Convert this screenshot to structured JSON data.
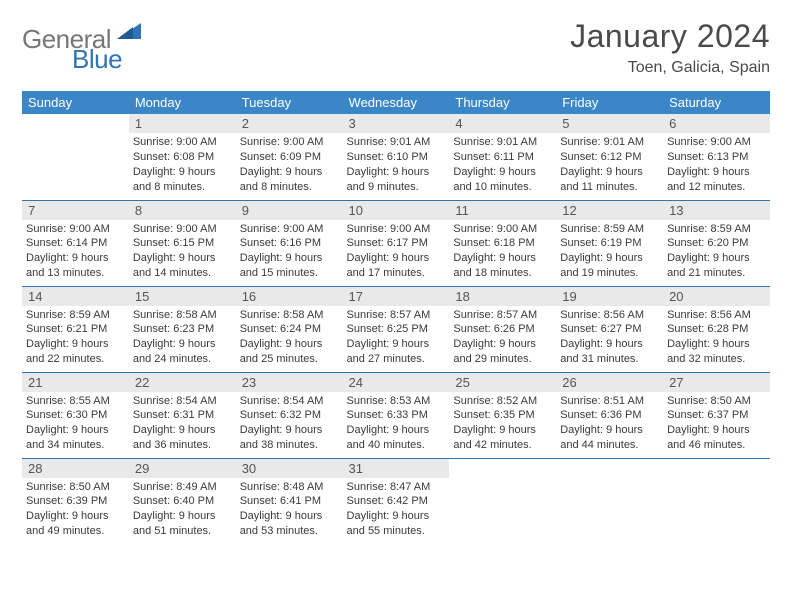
{
  "logo": {
    "general": "General",
    "blue": "Blue"
  },
  "header": {
    "title": "January 2024",
    "location": "Toen, Galicia, Spain"
  },
  "weekdays": [
    "Sunday",
    "Monday",
    "Tuesday",
    "Wednesday",
    "Thursday",
    "Friday",
    "Saturday"
  ],
  "style": {
    "header_bg": "#3b86c6",
    "header_text": "#ffffff",
    "daynum_bg": "#e9e9e9",
    "cell_border": "#2f74b5",
    "body_text": "#3a3a3a",
    "logo_gray": "#777777",
    "logo_blue": "#2f74b5",
    "background": "#ffffff",
    "title_fontsize": 32,
    "location_fontsize": 16,
    "weekday_fontsize": 13,
    "daynum_fontsize": 13,
    "body_fontsize": 11
  },
  "grid": [
    [
      null,
      {
        "n": "1",
        "sr": "9:00 AM",
        "ss": "6:08 PM",
        "dl": "9 hours and 8 minutes."
      },
      {
        "n": "2",
        "sr": "9:00 AM",
        "ss": "6:09 PM",
        "dl": "9 hours and 8 minutes."
      },
      {
        "n": "3",
        "sr": "9:01 AM",
        "ss": "6:10 PM",
        "dl": "9 hours and 9 minutes."
      },
      {
        "n": "4",
        "sr": "9:01 AM",
        "ss": "6:11 PM",
        "dl": "9 hours and 10 minutes."
      },
      {
        "n": "5",
        "sr": "9:01 AM",
        "ss": "6:12 PM",
        "dl": "9 hours and 11 minutes."
      },
      {
        "n": "6",
        "sr": "9:00 AM",
        "ss": "6:13 PM",
        "dl": "9 hours and 12 minutes."
      }
    ],
    [
      {
        "n": "7",
        "sr": "9:00 AM",
        "ss": "6:14 PM",
        "dl": "9 hours and 13 minutes."
      },
      {
        "n": "8",
        "sr": "9:00 AM",
        "ss": "6:15 PM",
        "dl": "9 hours and 14 minutes."
      },
      {
        "n": "9",
        "sr": "9:00 AM",
        "ss": "6:16 PM",
        "dl": "9 hours and 15 minutes."
      },
      {
        "n": "10",
        "sr": "9:00 AM",
        "ss": "6:17 PM",
        "dl": "9 hours and 17 minutes."
      },
      {
        "n": "11",
        "sr": "9:00 AM",
        "ss": "6:18 PM",
        "dl": "9 hours and 18 minutes."
      },
      {
        "n": "12",
        "sr": "8:59 AM",
        "ss": "6:19 PM",
        "dl": "9 hours and 19 minutes."
      },
      {
        "n": "13",
        "sr": "8:59 AM",
        "ss": "6:20 PM",
        "dl": "9 hours and 21 minutes."
      }
    ],
    [
      {
        "n": "14",
        "sr": "8:59 AM",
        "ss": "6:21 PM",
        "dl": "9 hours and 22 minutes."
      },
      {
        "n": "15",
        "sr": "8:58 AM",
        "ss": "6:23 PM",
        "dl": "9 hours and 24 minutes."
      },
      {
        "n": "16",
        "sr": "8:58 AM",
        "ss": "6:24 PM",
        "dl": "9 hours and 25 minutes."
      },
      {
        "n": "17",
        "sr": "8:57 AM",
        "ss": "6:25 PM",
        "dl": "9 hours and 27 minutes."
      },
      {
        "n": "18",
        "sr": "8:57 AM",
        "ss": "6:26 PM",
        "dl": "9 hours and 29 minutes."
      },
      {
        "n": "19",
        "sr": "8:56 AM",
        "ss": "6:27 PM",
        "dl": "9 hours and 31 minutes."
      },
      {
        "n": "20",
        "sr": "8:56 AM",
        "ss": "6:28 PM",
        "dl": "9 hours and 32 minutes."
      }
    ],
    [
      {
        "n": "21",
        "sr": "8:55 AM",
        "ss": "6:30 PM",
        "dl": "9 hours and 34 minutes."
      },
      {
        "n": "22",
        "sr": "8:54 AM",
        "ss": "6:31 PM",
        "dl": "9 hours and 36 minutes."
      },
      {
        "n": "23",
        "sr": "8:54 AM",
        "ss": "6:32 PM",
        "dl": "9 hours and 38 minutes."
      },
      {
        "n": "24",
        "sr": "8:53 AM",
        "ss": "6:33 PM",
        "dl": "9 hours and 40 minutes."
      },
      {
        "n": "25",
        "sr": "8:52 AM",
        "ss": "6:35 PM",
        "dl": "9 hours and 42 minutes."
      },
      {
        "n": "26",
        "sr": "8:51 AM",
        "ss": "6:36 PM",
        "dl": "9 hours and 44 minutes."
      },
      {
        "n": "27",
        "sr": "8:50 AM",
        "ss": "6:37 PM",
        "dl": "9 hours and 46 minutes."
      }
    ],
    [
      {
        "n": "28",
        "sr": "8:50 AM",
        "ss": "6:39 PM",
        "dl": "9 hours and 49 minutes."
      },
      {
        "n": "29",
        "sr": "8:49 AM",
        "ss": "6:40 PM",
        "dl": "9 hours and 51 minutes."
      },
      {
        "n": "30",
        "sr": "8:48 AM",
        "ss": "6:41 PM",
        "dl": "9 hours and 53 minutes."
      },
      {
        "n": "31",
        "sr": "8:47 AM",
        "ss": "6:42 PM",
        "dl": "9 hours and 55 minutes."
      },
      null,
      null,
      null
    ]
  ],
  "labels": {
    "sunrise": "Sunrise:",
    "sunset": "Sunset:",
    "daylight": "Daylight:"
  }
}
